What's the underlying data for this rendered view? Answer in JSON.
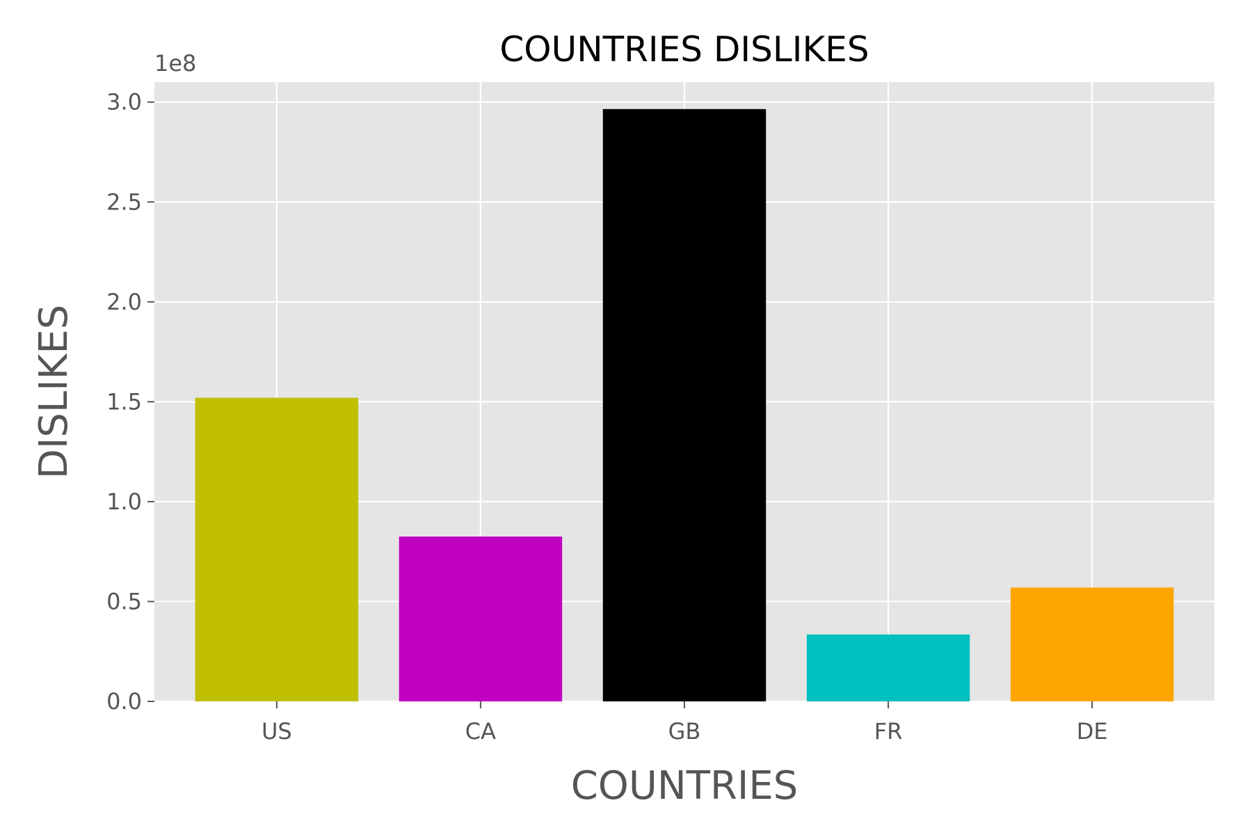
{
  "chart_data": {
    "type": "bar",
    "title": "COUNTRIES DISLIKES",
    "xlabel": "COUNTRIES",
    "ylabel": "DISLIKES",
    "offset_label": "1e8",
    "categories": [
      "US",
      "CA",
      "GB",
      "FR",
      "DE"
    ],
    "values": [
      152000000,
      82500000,
      296500000,
      33500000,
      57000000
    ],
    "colors": [
      "#bfbf00",
      "#bf00bf",
      "#000000",
      "#00bfbf",
      "#ffa500"
    ],
    "ylim": [
      0,
      310000000
    ],
    "yticks": [
      0,
      50000000,
      100000000,
      150000000,
      200000000,
      250000000,
      300000000
    ],
    "ytick_labels": [
      "0.0",
      "0.5",
      "1.0",
      "1.5",
      "2.0",
      "2.5",
      "3.0"
    ],
    "grid": true,
    "style": "ggplot",
    "plot_background": "#e5e5e5"
  }
}
